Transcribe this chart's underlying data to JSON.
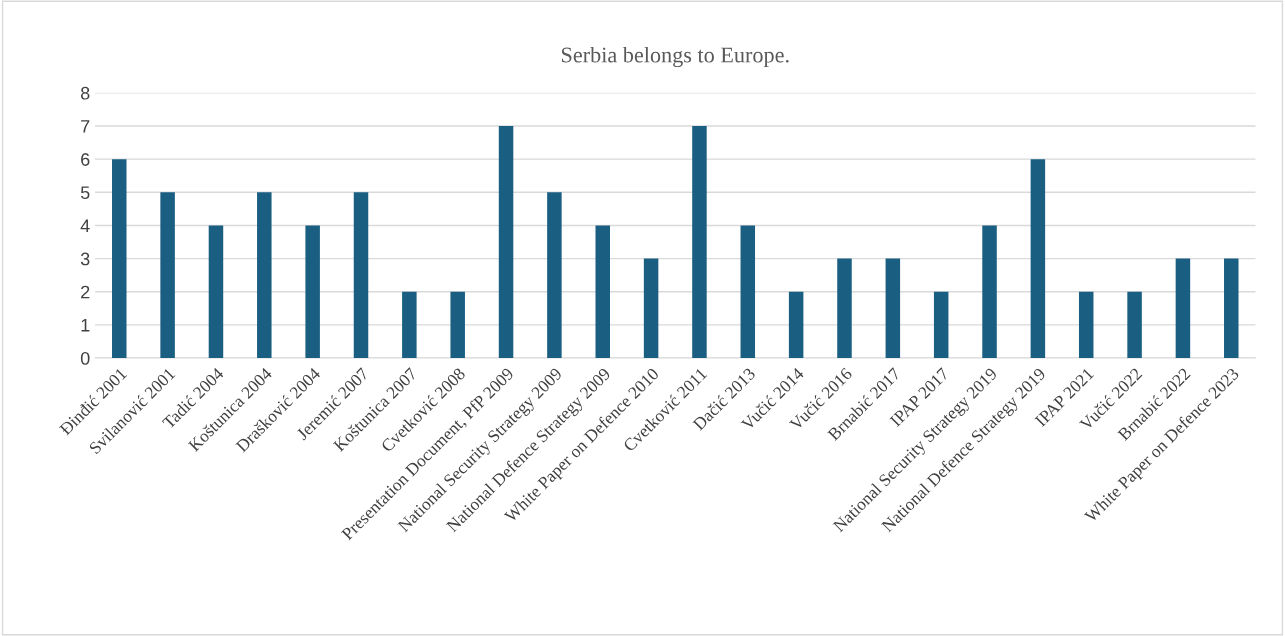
{
  "chart_data": {
    "type": "bar",
    "title": "Serbia belongs to Europe.",
    "categories": [
      "Đinđić 2001",
      "Svilanović 2001",
      "Tadić 2004",
      "Koštunica 2004",
      "Drašković 2004",
      "Jeremić 2007",
      "Koštunica 2007",
      "Cvetković 2008",
      "Presentation Document, PfP 2009",
      "National Security Strategy 2009",
      "National Defence Strategy 2009",
      "White Paper on Defence 2010",
      "Cvetković 2011",
      "Dačić 2013",
      "Vučić 2014",
      "Vučić 2016",
      "Brnabić 2017",
      "IPAP 2017",
      "National Security Strategy 2019",
      "National Defence Strategy 2019",
      "IPAP 2021",
      "Vučić 2022",
      "Brnabić 2022",
      "White Paper on Defence 2023"
    ],
    "values": [
      6,
      5,
      4,
      5,
      4,
      5,
      2,
      2,
      7,
      5,
      4,
      3,
      7,
      4,
      2,
      3,
      3,
      2,
      4,
      6,
      2,
      2,
      3,
      3
    ],
    "color": "#1a5f82",
    "ylim": [
      0,
      8
    ],
    "yticks": [
      0,
      1,
      2,
      3,
      4,
      5,
      6,
      7,
      8
    ],
    "grid": "y"
  }
}
